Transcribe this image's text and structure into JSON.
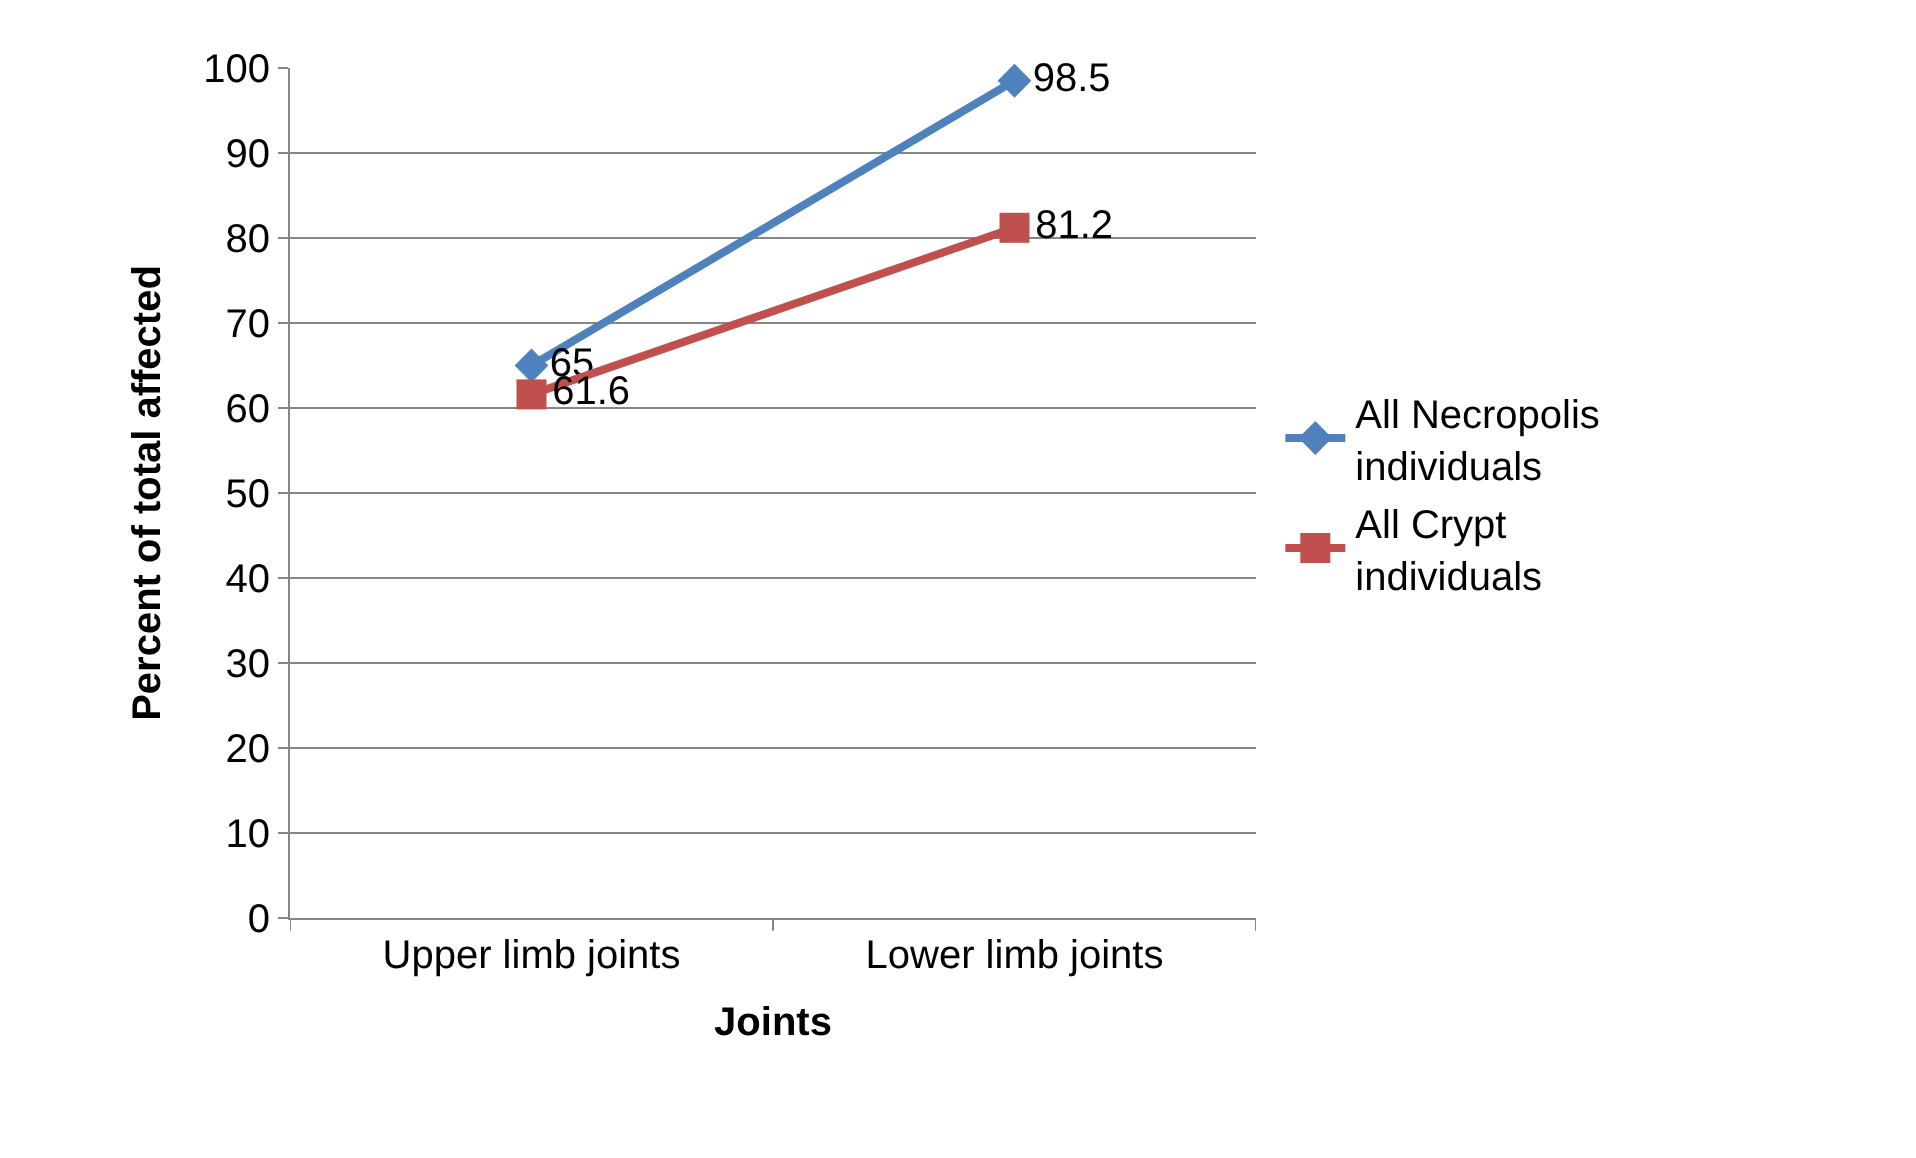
{
  "chart_data": {
    "type": "line",
    "xlabel": "Joints",
    "ylabel": "Percent of total affected",
    "categories": [
      "Upper limb joints",
      "Lower limb joints"
    ],
    "series": [
      {
        "name": "All Necropolis individuals",
        "color": "#4f81bd",
        "marker": "diamond",
        "values": [
          65,
          98.5
        ]
      },
      {
        "name": "All Crypt individuals",
        "color": "#c0504d",
        "marker": "square",
        "values": [
          61.6,
          81.2
        ]
      }
    ],
    "ylim": [
      0,
      100
    ],
    "yticks": [
      0,
      10,
      20,
      30,
      40,
      50,
      60,
      70,
      80,
      90,
      100
    ],
    "grid": "y",
    "legend": "right",
    "data_labels": true
  }
}
